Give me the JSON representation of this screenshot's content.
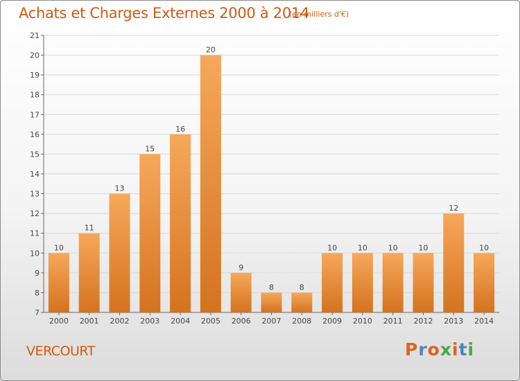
{
  "header": {
    "title": "Achats et Charges Externes 2000 à 2014",
    "subtitle": "(en milliers d'€)"
  },
  "footer": {
    "city": "VERCOURT",
    "logo": "Proxiti"
  },
  "colors": {
    "accent": "#d05a10",
    "bar_light": "#f6a85a",
    "bar_dark": "#d4731f",
    "logo_letters": [
      "#e2611b",
      "#4a86c5",
      "#e2611b",
      "#49a843",
      "#e2611b",
      "#4a86c5",
      "#49a843"
    ]
  },
  "chart_data": {
    "type": "bar",
    "categories": [
      "2000",
      "2001",
      "2002",
      "2003",
      "2004",
      "2005",
      "2006",
      "2007",
      "2008",
      "2009",
      "2010",
      "2011",
      "2012",
      "2013",
      "2014"
    ],
    "values": [
      10,
      11,
      13,
      15,
      16,
      20,
      9,
      8,
      8,
      10,
      10,
      10,
      10,
      12,
      10
    ],
    "title": "Achats et Charges Externes 2000 à 2014",
    "subtitle": "(en milliers d'€)",
    "xlabel": "",
    "ylabel": "",
    "ylim": [
      7,
      21
    ],
    "yticks": [
      7,
      8,
      9,
      10,
      11,
      12,
      13,
      14,
      15,
      16,
      17,
      18,
      19,
      20,
      21
    ],
    "grid": true,
    "data_labels": true
  }
}
